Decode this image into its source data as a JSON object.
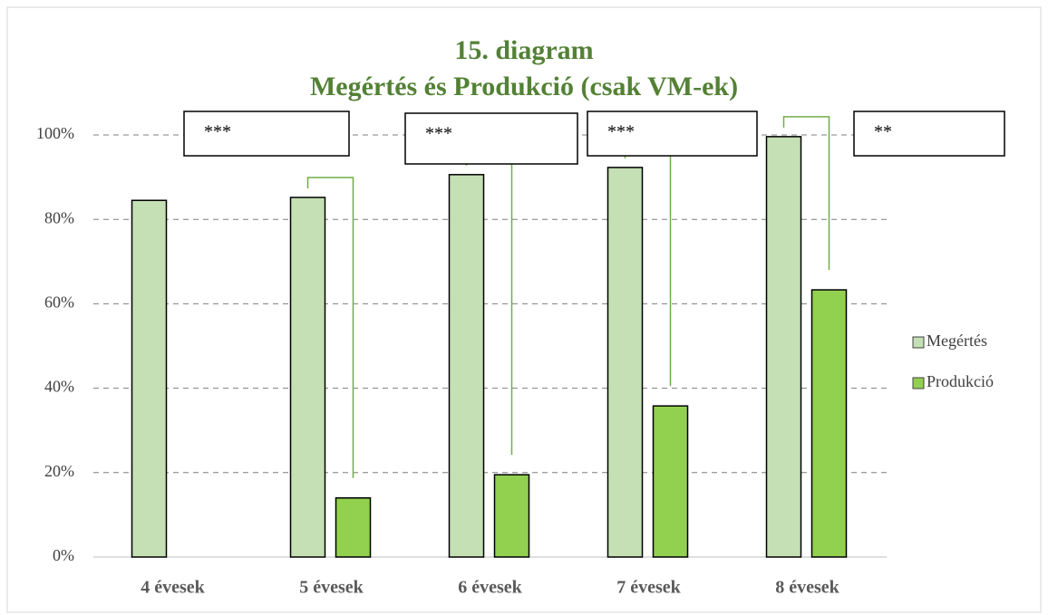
{
  "chart_data": {
    "type": "bar",
    "title": "15. diagram",
    "subtitle": "Megértés és Produkció (csak VM-ek)",
    "categories": [
      "4 évesek",
      "5 évesek",
      "6 évesek",
      "7 évesek",
      "8 évesek"
    ],
    "series": [
      {
        "name": "Megértés",
        "color": "#c5e0b4",
        "values": [
          84.5,
          85.2,
          90.6,
          92.3,
          99.6
        ]
      },
      {
        "name": "Produkció",
        "color": "#92d050",
        "values": [
          null,
          14,
          19.5,
          35.8,
          63.3
        ]
      }
    ],
    "ylim": [
      0,
      100
    ],
    "yticks": [
      {
        "value": 0,
        "label": "0%"
      },
      {
        "value": 20,
        "label": "20%"
      },
      {
        "value": 40,
        "label": "40%"
      },
      {
        "value": 60,
        "label": "60%"
      },
      {
        "value": 80,
        "label": "80%"
      },
      {
        "value": 100,
        "label": "100%"
      }
    ],
    "grid": true,
    "legend": "right",
    "annotations": [
      "***",
      "***",
      "***",
      "**"
    ]
  }
}
